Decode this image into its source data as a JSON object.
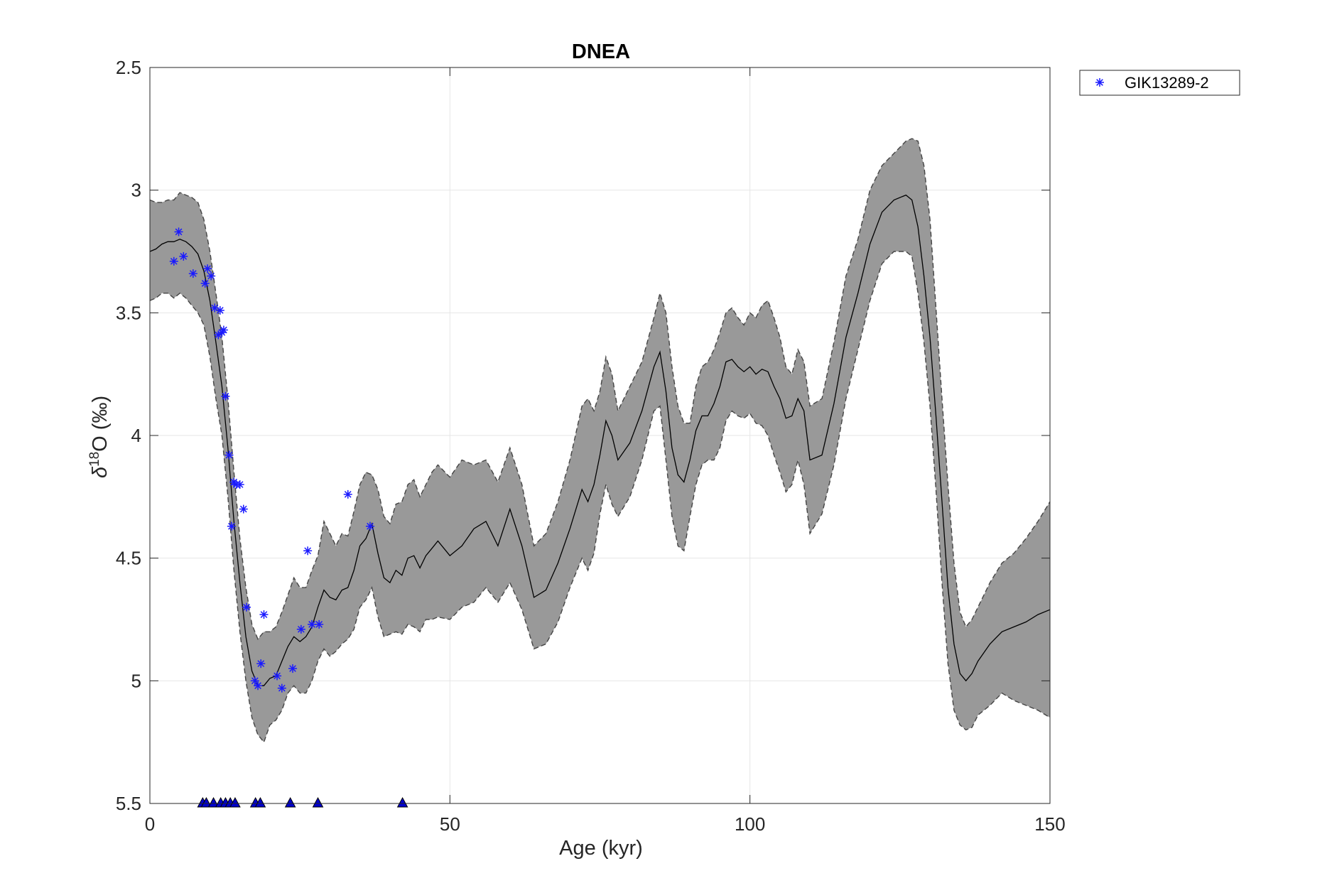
{
  "chart_data": {
    "type": "line",
    "title": "DNEA",
    "xlabel": "Age (kyr)",
    "ylabel_symbol": "δ",
    "ylabel_sup": "18",
    "ylabel_rest": "O (‰)",
    "xlim": [
      0,
      150
    ],
    "ylim": [
      2.5,
      5.5
    ],
    "y_reversed": true,
    "grid": true,
    "xticks": [
      0,
      50,
      100,
      150
    ],
    "xtick_labels": [
      "0",
      "50",
      "100",
      "150"
    ],
    "yticks": [
      2.5,
      3,
      3.5,
      4,
      4.5,
      5,
      5.5
    ],
    "ytick_labels": [
      "2.5",
      "3",
      "3.5",
      "4",
      "4.5",
      "5",
      "5.5"
    ],
    "legend": {
      "position": "top-right-outside",
      "entries": [
        "GIK13289-2"
      ]
    },
    "colors": {
      "band": "#999999",
      "line": "#000000",
      "marker": "#1a1aff",
      "triangle": "#0000cc",
      "grid": "#e6e6e6",
      "axis": "#262626"
    },
    "mean": {
      "x": [
        0,
        1,
        2,
        3,
        4,
        5,
        6,
        7,
        8,
        9,
        10,
        11,
        12,
        13,
        14,
        15,
        16,
        17,
        18,
        19,
        20,
        21,
        22,
        23,
        24,
        25,
        26,
        27,
        28,
        29,
        30,
        31,
        32,
        33,
        34,
        35,
        36,
        37,
        38,
        39,
        40,
        41,
        42,
        43,
        44,
        45,
        46,
        47,
        48,
        50,
        52,
        54,
        56,
        58,
        60,
        62,
        64,
        66,
        68,
        70,
        72,
        73,
        74,
        75,
        76,
        77,
        78,
        80,
        82,
        84,
        85,
        86,
        87,
        88,
        89,
        90,
        91,
        92,
        93,
        94,
        95,
        96,
        97,
        98,
        99,
        100,
        101,
        102,
        103,
        104,
        105,
        106,
        107,
        108,
        109,
        110,
        112,
        114,
        116,
        118,
        120,
        122,
        124,
        126,
        127,
        128,
        129,
        130,
        131,
        132,
        133,
        134,
        135,
        136,
        137,
        138,
        140,
        142,
        144,
        146,
        148,
        150
      ],
      "y": [
        3.25,
        3.24,
        3.22,
        3.21,
        3.21,
        3.2,
        3.21,
        3.23,
        3.26,
        3.33,
        3.45,
        3.62,
        3.8,
        4.05,
        4.35,
        4.6,
        4.82,
        4.96,
        5.02,
        5.02,
        4.99,
        4.98,
        4.92,
        4.86,
        4.82,
        4.84,
        4.82,
        4.78,
        4.7,
        4.63,
        4.66,
        4.67,
        4.63,
        4.62,
        4.55,
        4.45,
        4.42,
        4.36,
        4.48,
        4.58,
        4.6,
        4.55,
        4.57,
        4.5,
        4.49,
        4.54,
        4.49,
        4.46,
        4.43,
        4.49,
        4.45,
        4.38,
        4.35,
        4.45,
        4.3,
        4.45,
        4.66,
        4.63,
        4.52,
        4.38,
        4.22,
        4.27,
        4.2,
        4.08,
        3.94,
        4.0,
        4.1,
        4.03,
        3.9,
        3.72,
        3.66,
        3.82,
        4.05,
        4.16,
        4.19,
        4.1,
        3.98,
        3.92,
        3.92,
        3.87,
        3.8,
        3.7,
        3.69,
        3.72,
        3.74,
        3.72,
        3.75,
        3.73,
        3.74,
        3.8,
        3.85,
        3.93,
        3.92,
        3.85,
        3.9,
        4.1,
        4.08,
        3.87,
        3.6,
        3.42,
        3.22,
        3.09,
        3.04,
        3.02,
        3.04,
        3.15,
        3.35,
        3.6,
        3.92,
        4.27,
        4.62,
        4.85,
        4.97,
        5.0,
        4.97,
        4.92,
        4.85,
        4.8,
        4.78,
        4.76,
        4.73,
        4.71
      ]
    },
    "upper_bound": {
      "x": [
        0,
        1,
        2,
        3,
        4,
        5,
        6,
        7,
        8,
        9,
        10,
        11,
        12,
        13,
        14,
        15,
        16,
        17,
        18,
        19,
        20,
        21,
        22,
        23,
        24,
        25,
        26,
        27,
        28,
        29,
        30,
        31,
        32,
        33,
        34,
        35,
        36,
        37,
        38,
        39,
        40,
        41,
        42,
        43,
        44,
        45,
        46,
        47,
        48,
        50,
        52,
        54,
        56,
        58,
        60,
        62,
        64,
        66,
        68,
        70,
        72,
        73,
        74,
        75,
        76,
        77,
        78,
        80,
        82,
        84,
        85,
        86,
        87,
        88,
        89,
        90,
        91,
        92,
        93,
        94,
        95,
        96,
        97,
        98,
        99,
        100,
        101,
        102,
        103,
        104,
        105,
        106,
        107,
        108,
        109,
        110,
        112,
        114,
        116,
        118,
        120,
        122,
        124,
        126,
        127,
        128,
        129,
        130,
        131,
        132,
        133,
        134,
        135,
        136,
        137,
        138,
        140,
        142,
        144,
        146,
        148,
        150
      ],
      "y": [
        3.04,
        3.05,
        3.05,
        3.04,
        3.04,
        3.01,
        3.02,
        3.03,
        3.05,
        3.12,
        3.25,
        3.42,
        3.6,
        3.85,
        4.15,
        4.42,
        4.62,
        4.77,
        4.83,
        4.8,
        4.8,
        4.78,
        4.72,
        4.65,
        4.58,
        4.62,
        4.62,
        4.55,
        4.49,
        4.35,
        4.4,
        4.45,
        4.4,
        4.41,
        4.31,
        4.2,
        4.15,
        4.16,
        4.22,
        4.33,
        4.36,
        4.28,
        4.27,
        4.2,
        4.18,
        4.25,
        4.2,
        4.15,
        4.12,
        4.17,
        4.1,
        4.12,
        4.1,
        4.19,
        4.05,
        4.2,
        4.45,
        4.4,
        4.27,
        4.1,
        3.88,
        3.85,
        3.9,
        3.82,
        3.68,
        3.75,
        3.9,
        3.8,
        3.7,
        3.52,
        3.42,
        3.5,
        3.72,
        3.88,
        3.95,
        3.95,
        3.8,
        3.72,
        3.7,
        3.65,
        3.58,
        3.5,
        3.48,
        3.52,
        3.55,
        3.5,
        3.52,
        3.47,
        3.45,
        3.52,
        3.6,
        3.72,
        3.75,
        3.65,
        3.7,
        3.88,
        3.85,
        3.62,
        3.35,
        3.2,
        3.0,
        2.9,
        2.85,
        2.8,
        2.79,
        2.8,
        2.9,
        3.12,
        3.48,
        3.85,
        4.2,
        4.52,
        4.72,
        4.78,
        4.75,
        4.7,
        4.6,
        4.52,
        4.48,
        4.42,
        4.35,
        4.27
      ]
    },
    "lower_bound": {
      "x": [
        0,
        1,
        2,
        3,
        4,
        5,
        6,
        7,
        8,
        9,
        10,
        11,
        12,
        13,
        14,
        15,
        16,
        17,
        18,
        19,
        20,
        21,
        22,
        23,
        24,
        25,
        26,
        27,
        28,
        29,
        30,
        31,
        32,
        33,
        34,
        35,
        36,
        37,
        38,
        39,
        40,
        41,
        42,
        43,
        44,
        45,
        46,
        47,
        48,
        50,
        52,
        54,
        56,
        58,
        60,
        62,
        64,
        66,
        68,
        70,
        72,
        73,
        74,
        75,
        76,
        77,
        78,
        80,
        82,
        84,
        85,
        86,
        87,
        88,
        89,
        90,
        91,
        92,
        93,
        94,
        95,
        96,
        97,
        98,
        99,
        100,
        101,
        102,
        103,
        104,
        105,
        106,
        107,
        108,
        109,
        110,
        112,
        114,
        116,
        118,
        120,
        122,
        124,
        126,
        127,
        128,
        129,
        130,
        131,
        132,
        133,
        134,
        135,
        136,
        137,
        138,
        140,
        142,
        144,
        146,
        148,
        150
      ],
      "y": [
        3.45,
        3.44,
        3.42,
        3.42,
        3.44,
        3.42,
        3.44,
        3.47,
        3.5,
        3.55,
        3.68,
        3.85,
        4.0,
        4.25,
        4.55,
        4.8,
        5.0,
        5.15,
        5.22,
        5.25,
        5.18,
        5.16,
        5.12,
        5.05,
        5.02,
        5.05,
        5.05,
        5.0,
        4.92,
        4.87,
        4.9,
        4.88,
        4.85,
        4.83,
        4.79,
        4.7,
        4.67,
        4.62,
        4.74,
        4.82,
        4.81,
        4.8,
        4.81,
        4.77,
        4.78,
        4.8,
        4.75,
        4.75,
        4.74,
        4.75,
        4.7,
        4.68,
        4.62,
        4.68,
        4.6,
        4.71,
        4.87,
        4.85,
        4.76,
        4.62,
        4.5,
        4.55,
        4.48,
        4.32,
        4.2,
        4.28,
        4.33,
        4.25,
        4.1,
        3.9,
        3.88,
        4.1,
        4.33,
        4.45,
        4.47,
        4.33,
        4.2,
        4.12,
        4.1,
        4.1,
        4.05,
        3.94,
        3.9,
        3.92,
        3.93,
        3.91,
        3.95,
        3.96,
        4.0,
        4.08,
        4.15,
        4.23,
        4.2,
        4.1,
        4.2,
        4.4,
        4.32,
        4.12,
        3.85,
        3.65,
        3.45,
        3.3,
        3.25,
        3.25,
        3.27,
        3.42,
        3.62,
        3.88,
        4.22,
        4.6,
        4.93,
        5.12,
        5.18,
        5.2,
        5.19,
        5.14,
        5.1,
        5.05,
        5.08,
        5.1,
        5.12,
        5.15
      ]
    },
    "sample_points": {
      "name": "GIK13289-2",
      "x": [
        4.0,
        4.8,
        5.6,
        7.2,
        9.2,
        9.6,
        10.2,
        10.8,
        11.4,
        11.7,
        12.0,
        12.3,
        12.6,
        13.2,
        13.6,
        14.0,
        14.4,
        15.0,
        15.6,
        16.1,
        17.5,
        18.0,
        18.5,
        19.0,
        21.2,
        22.0,
        23.8,
        25.2,
        26.3,
        27.0,
        28.2,
        33.0,
        36.7
      ],
      "y": [
        3.29,
        3.17,
        3.27,
        3.34,
        3.38,
        3.32,
        3.35,
        3.48,
        3.59,
        3.49,
        3.58,
        3.57,
        3.84,
        4.08,
        4.37,
        4.19,
        4.2,
        4.2,
        4.3,
        4.7,
        5.0,
        5.02,
        4.93,
        4.73,
        4.98,
        5.03,
        4.95,
        4.79,
        4.47,
        4.77,
        4.77,
        4.24,
        4.37
      ]
    },
    "age_markers": {
      "x": [
        8.8,
        9.4,
        10.6,
        11.8,
        12.6,
        13.4,
        14.2,
        17.6,
        18.4,
        23.4,
        28.0,
        42.1
      ],
      "y": 5.5
    }
  }
}
